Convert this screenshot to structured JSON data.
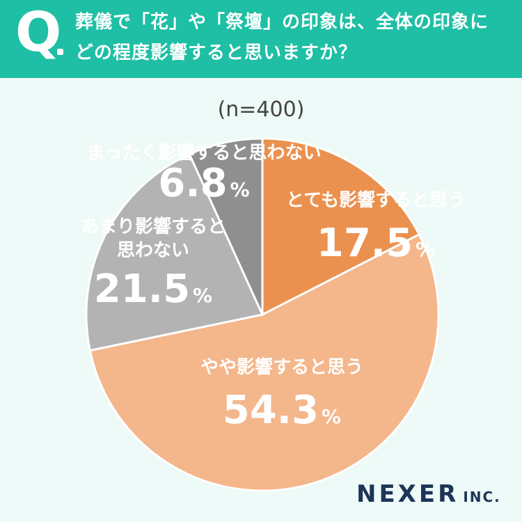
{
  "header": {
    "q_mark": "Q",
    "question_line1": "葬儀で「花」や「祭壇」の印象は、全体の印象に",
    "question_line2": "どの程度影響すると思いますか？"
  },
  "brand": {
    "name": "NEXER",
    "suffix": "INC."
  },
  "colors": {
    "header_bg": "#1ebfa4",
    "slice_1": "#eb914f",
    "slice_2": "#f4b68b",
    "slice_3": "#b3b3b3",
    "slice_4": "#8f8f8f"
  },
  "chart_data": {
    "type": "pie",
    "sample_size_label": "(n=400)",
    "categories": [
      "とても影響すると思う",
      "やや影響すると思う",
      "あまり影響すると思わない",
      "まったく影響すると思わない"
    ],
    "values": [
      17.5,
      54.3,
      21.5,
      6.8
    ],
    "value_labels": [
      "17.5",
      "54.3",
      "21.5",
      "6.8"
    ],
    "unit": "%",
    "label_lines": [
      [
        "とても影響すると思う"
      ],
      [
        "やや影響すると思う"
      ],
      [
        "あまり影響すると",
        "思わない"
      ],
      [
        "まったく影響すると思わない"
      ]
    ]
  }
}
